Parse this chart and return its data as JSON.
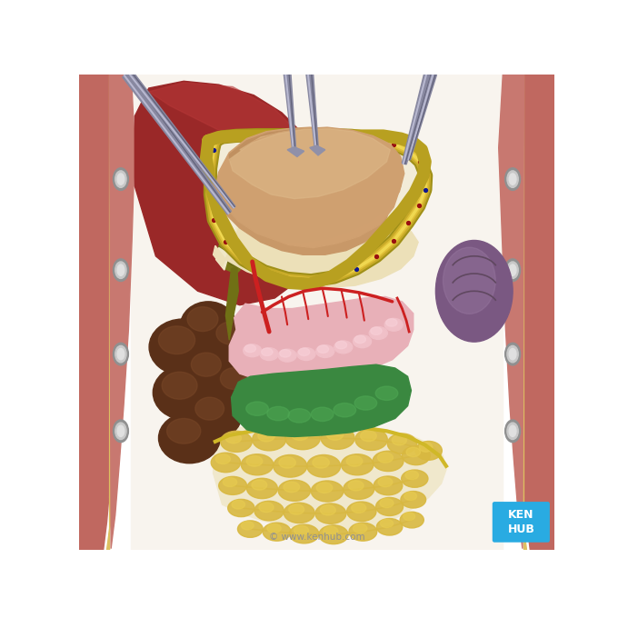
{
  "background_color": "#ffffff",
  "watermark_text": "© www.kenhub.com",
  "kenhub_box_color": "#29abe2",
  "kenhub_text": "KEN\nHUB",
  "colors": {
    "body_wall_pink": "#c8706a",
    "body_wall_fat": "#e8c870",
    "body_wall_inner": "#d4786a",
    "bolt_gray": "#b0b0b0",
    "bolt_light": "#d8d8d8",
    "abdom_bg": "#f8f2ea",
    "liver_dark": "#8a2020",
    "liver_mid": "#a83030",
    "gallbladder_olive": "#6a6818",
    "gallbladder_body": "#7a7a20",
    "spleen_purple": "#7a5880",
    "spleen_light": "#9a7898",
    "stomach_peach": "#d4a878",
    "stomach_shadow": "#b88860",
    "mesocolon_yellow": "#e8d870",
    "mesocolon_border": "#c8b840",
    "peritoneum_pale": "#f0e8c8",
    "pancreas_pink": "#e8b0b8",
    "colon_green": "#4a9850",
    "intestine_brown": "#6a3820",
    "intestine_light": "#8a5030",
    "omentum_yellow": "#e8cb78",
    "omentum_net": "#d4b848",
    "omentum_bg": "#f0e8c0",
    "retractor_dark": "#707088",
    "retractor_mid": "#9898b0",
    "retractor_light": "#c0c0d0",
    "vessel_red": "#cc2828",
    "dot_red": "#991010",
    "dot_blue": "#102099"
  }
}
